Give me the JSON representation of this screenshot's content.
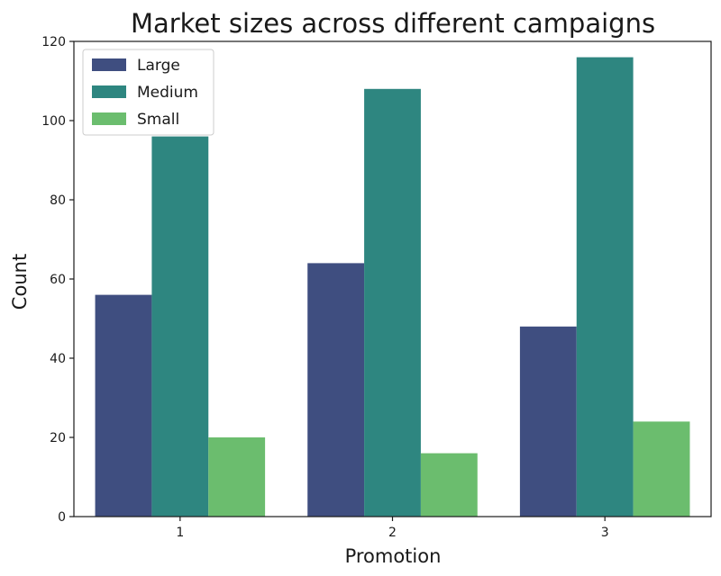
{
  "chart_data": {
    "type": "bar",
    "title": "Market sizes across different campaigns",
    "xlabel": "Promotion",
    "ylabel": "Count",
    "categories": [
      "1",
      "2",
      "3"
    ],
    "series": [
      {
        "name": "Large",
        "values": [
          56,
          64,
          48
        ],
        "color": "#3f4e80"
      },
      {
        "name": "Medium",
        "values": [
          96,
          108,
          116
        ],
        "color": "#2e8680"
      },
      {
        "name": "Small",
        "values": [
          20,
          16,
          24
        ],
        "color": "#6bbd6e"
      }
    ],
    "ylim": [
      0,
      120
    ],
    "yticks": [
      0,
      20,
      40,
      60,
      80,
      100,
      120
    ],
    "grid": false,
    "legend_position": "top-left"
  }
}
